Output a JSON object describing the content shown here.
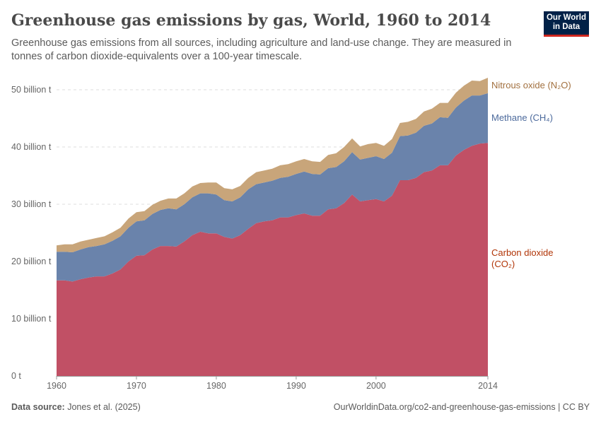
{
  "header": {
    "title": "Greenhouse gas emissions by gas, World, 1960 to 2014",
    "subtitle": "Greenhouse gas emissions from all sources, including agriculture and land-use change. They are measured in tonnes of carbon dioxide-equivalents over a 100-year timescale.",
    "logo": "Our World in Data"
  },
  "footer": {
    "source_label": "Data source:",
    "source": "Jones et al. (2025)",
    "url": "OurWorldinData.org/co2-and-greenhouse-gas-emissions | CC BY"
  },
  "chart_data": {
    "type": "area",
    "stacked": true,
    "title": "Greenhouse gas emissions by gas, World, 1960 to 2014",
    "ylim": [
      0,
      50
    ],
    "y_ticks": [
      0,
      10,
      20,
      30,
      40,
      50
    ],
    "y_tick_labels": [
      "0 t",
      "10 billion t",
      "20 billion t",
      "30 billion t",
      "40 billion t",
      "50 billion t"
    ],
    "x_ticks": [
      1960,
      1970,
      1980,
      1990,
      2000,
      2014
    ],
    "x_tick_labels": [
      "1960",
      "1970",
      "1980",
      "1990",
      "2000",
      "2014"
    ],
    "grid": "horizontal dashed",
    "legend": "right, inline labels",
    "x": [
      1960,
      1961,
      1962,
      1963,
      1964,
      1965,
      1966,
      1967,
      1968,
      1969,
      1970,
      1971,
      1972,
      1973,
      1974,
      1975,
      1976,
      1977,
      1978,
      1979,
      1980,
      1981,
      1982,
      1983,
      1984,
      1985,
      1986,
      1987,
      1988,
      1989,
      1990,
      1991,
      1992,
      1993,
      1994,
      1995,
      1996,
      1997,
      1998,
      1999,
      2000,
      2001,
      2002,
      2003,
      2004,
      2005,
      2006,
      2007,
      2008,
      2009,
      2010,
      2011,
      2012,
      2013,
      2014
    ],
    "series": [
      {
        "name": "Carbon dioxide (CO₂)",
        "label_lines": [
          "Carbon dioxide",
          "(CO₂)"
        ],
        "color": "#c15065",
        "label_color": "#b13507",
        "values": [
          16.7,
          16.7,
          16.5,
          16.9,
          17.2,
          17.4,
          17.4,
          17.9,
          18.6,
          20.0,
          21.0,
          21.1,
          22.1,
          22.7,
          22.7,
          22.6,
          23.5,
          24.6,
          25.2,
          24.9,
          24.9,
          24.3,
          24.0,
          24.6,
          25.7,
          26.7,
          27.0,
          27.2,
          27.7,
          27.7,
          28.1,
          28.4,
          28.0,
          28.0,
          29.1,
          29.3,
          30.2,
          31.7,
          30.5,
          30.7,
          30.9,
          30.5,
          31.5,
          34.2,
          34.2,
          34.6,
          35.6,
          35.9,
          36.8,
          36.8,
          38.5,
          39.5,
          40.2,
          40.6,
          40.7
        ]
      },
      {
        "name": "Methane (CH₄)",
        "label_lines": [
          "Methane (CH₄)"
        ],
        "color": "#6a83ab",
        "label_color": "#4c6a9c",
        "values": [
          5.0,
          5.0,
          5.1,
          5.2,
          5.3,
          5.3,
          5.6,
          5.7,
          5.8,
          5.9,
          6.0,
          6.1,
          6.2,
          6.3,
          6.6,
          6.5,
          6.5,
          6.6,
          6.7,
          7.0,
          6.8,
          6.4,
          6.5,
          6.6,
          6.9,
          6.8,
          6.8,
          6.9,
          6.9,
          7.1,
          7.2,
          7.3,
          7.3,
          7.2,
          7.2,
          7.2,
          7.3,
          7.4,
          7.3,
          7.4,
          7.5,
          7.4,
          7.5,
          7.7,
          7.8,
          7.9,
          8.1,
          8.2,
          8.4,
          8.3,
          8.4,
          8.6,
          8.8,
          8.4,
          8.7
        ]
      },
      {
        "name": "Nitrous oxide (N₂O)",
        "label_lines": [
          "Nitrous oxide (N₂O)"
        ],
        "color": "#c8a57a",
        "label_color": "#a2703f",
        "values": [
          1.1,
          1.3,
          1.4,
          1.4,
          1.3,
          1.4,
          1.4,
          1.5,
          1.5,
          1.6,
          1.6,
          1.6,
          1.6,
          1.6,
          1.7,
          1.9,
          1.9,
          1.9,
          1.8,
          1.9,
          2.1,
          2.1,
          2.1,
          2.0,
          2.0,
          2.1,
          2.1,
          2.1,
          2.2,
          2.2,
          2.2,
          2.2,
          2.2,
          2.2,
          2.3,
          2.4,
          2.5,
          2.4,
          2.3,
          2.4,
          2.3,
          2.3,
          2.4,
          2.3,
          2.4,
          2.4,
          2.5,
          2.6,
          2.5,
          2.6,
          2.6,
          2.6,
          2.6,
          2.5,
          2.7
        ]
      }
    ]
  }
}
